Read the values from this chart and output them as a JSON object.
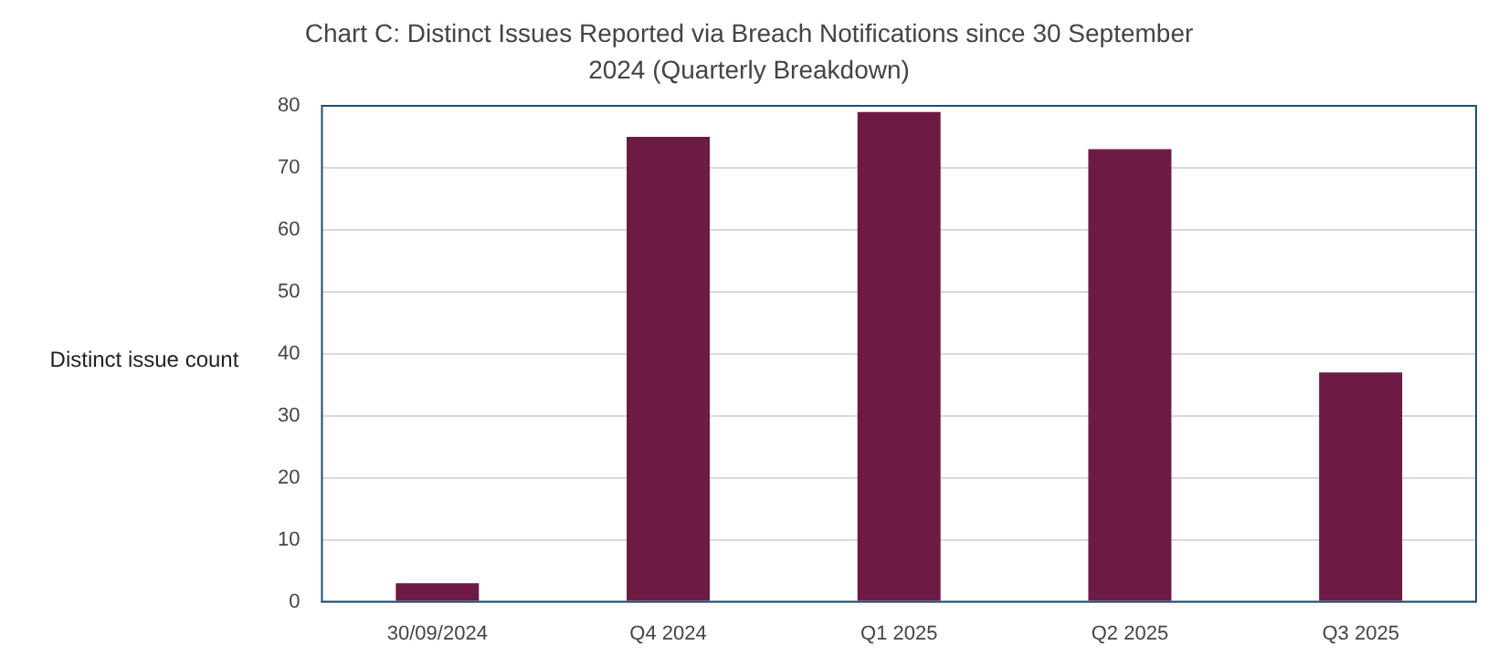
{
  "chart_data": {
    "type": "bar",
    "title": "Chart C: Distinct Issues Reported via Breach Notifications since 30 September 2024 (Quarterly Breakdown)",
    "ylabel": "Distinct issue count",
    "categories": [
      "30/09/2024",
      "Q4 2024",
      "Q1 2025",
      "Q2 2025",
      "Q3 2025"
    ],
    "values": [
      3,
      75,
      79,
      73,
      37
    ],
    "color": "#6d1a45",
    "ylim": [
      0,
      80
    ],
    "yticks": [
      0,
      10,
      20,
      30,
      40,
      50,
      60,
      70,
      80
    ],
    "grid": "y",
    "legend": false
  }
}
